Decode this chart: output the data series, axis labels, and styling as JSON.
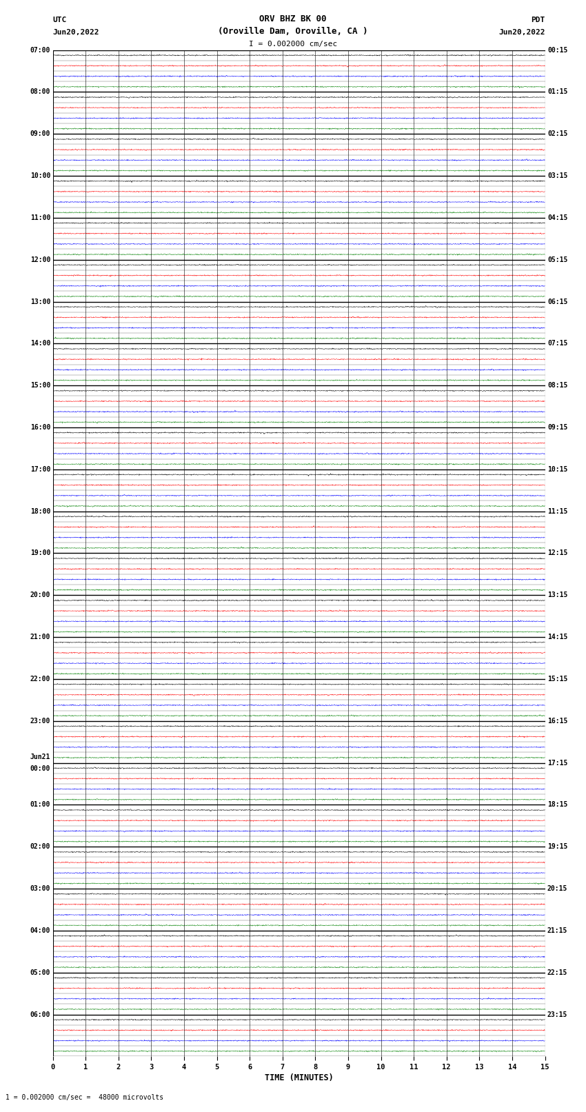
{
  "title_line1": "ORV BHZ BK 00",
  "title_line2": "(Oroville Dam, Oroville, CA )",
  "title_line3": "I = 0.002000 cm/sec",
  "left_label_top": "UTC",
  "left_label_date": "Jun20,2022",
  "right_label_top": "PDT",
  "right_label_date": "Jun20,2022",
  "footnote": "1 = 0.002000 cm/sec =  48000 microvolts",
  "utc_hour_labels": [
    "07:00",
    "08:00",
    "09:00",
    "10:00",
    "11:00",
    "12:00",
    "13:00",
    "14:00",
    "15:00",
    "16:00",
    "17:00",
    "18:00",
    "19:00",
    "20:00",
    "21:00",
    "22:00",
    "23:00",
    "Jun21\n00:00",
    "01:00",
    "02:00",
    "03:00",
    "04:00",
    "05:00",
    "06:00"
  ],
  "pdt_hour_labels": [
    "00:15",
    "01:15",
    "02:15",
    "03:15",
    "04:15",
    "05:15",
    "06:15",
    "07:15",
    "08:15",
    "09:15",
    "10:15",
    "11:15",
    "12:15",
    "13:15",
    "14:15",
    "15:15",
    "16:15",
    "17:15",
    "18:15",
    "19:15",
    "20:15",
    "21:15",
    "22:15",
    "23:15"
  ],
  "n_hours": 24,
  "subtraces_per_hour": 4,
  "minutes_per_subtrace": 15,
  "background_color": "#ffffff",
  "trace_colors": [
    "#000000",
    "#ff0000",
    "#0000ff",
    "#008000"
  ],
  "grid_color": "#000000",
  "x_ticks": [
    0,
    1,
    2,
    3,
    4,
    5,
    6,
    7,
    8,
    9,
    10,
    11,
    12,
    13,
    14,
    15
  ],
  "x_label": "TIME (MINUTES)",
  "noise_amplitude": 0.025,
  "spike_amplitude": 0.08
}
